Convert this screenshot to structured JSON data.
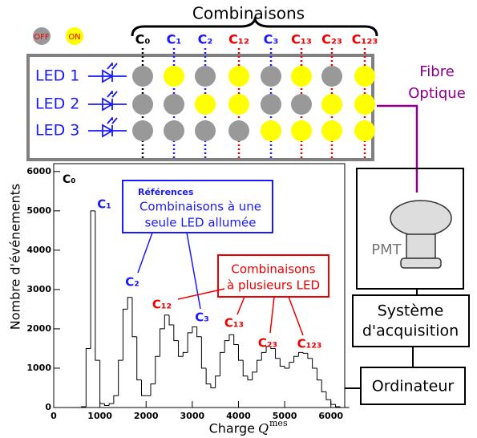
{
  "header": {
    "title": "Combinaisons",
    "off": "OFF",
    "on": "ON"
  },
  "combinations": [
    "C₀",
    "C₁",
    "C₂",
    "C₁₂",
    "C₃",
    "C₁₃",
    "C₂₃",
    "C₁₂₃"
  ],
  "leds": [
    "LED 1",
    "LED 2",
    "LED 3"
  ],
  "fibre": [
    "Fibre",
    "Optique"
  ],
  "pmt": "PMT",
  "acquisition": [
    "Système",
    "d'acquisition"
  ],
  "computer": "Ordinateur",
  "chart_data": {
    "type": "histogram",
    "y_label": "Nombre d'événements",
    "x_label": "Charge",
    "x_label_symbol": "Q",
    "x_label_sup": "mes",
    "panel_label": "C₀",
    "references_title": "Références",
    "references_lines": [
      "Combinaisons à une",
      "seule LED allumée"
    ],
    "multi_lines": [
      "Combinaisons",
      "à plusieurs LED"
    ],
    "color": "#000000",
    "bins": [
      500,
      600,
      700,
      800,
      900,
      1000,
      1100,
      1200,
      1300,
      1400,
      1500,
      1600,
      1700,
      1800,
      1900,
      2000,
      2100,
      2200,
      2300,
      2400,
      2500,
      2600,
      2700,
      2800,
      2900,
      3000,
      3100,
      3200,
      3300,
      3400,
      3500,
      3600,
      3700,
      3800,
      3900,
      4000,
      4100,
      4200,
      4300,
      4400,
      4500,
      4600,
      4700,
      4800,
      4900,
      5000,
      5100,
      5200,
      5300,
      5400,
      5500,
      5600,
      5700,
      5800,
      5900,
      6000,
      6100,
      6200,
      6300,
      6400
    ],
    "counts": [
      0,
      20,
      1500,
      5000,
      1200,
      100,
      50,
      100,
      300,
      1200,
      2500,
      2800,
      1800,
      700,
      300,
      300,
      600,
      1300,
      2000,
      2350,
      2100,
      1700,
      1300,
      1400,
      1900,
      2050,
      1800,
      1000,
      600,
      500,
      800,
      1400,
      1700,
      1850,
      1600,
      1200,
      800,
      700,
      900,
      1200,
      1400,
      1550,
      1500,
      1250,
      1050,
      1000,
      1150,
      1300,
      1400,
      1380,
      1250,
      1000,
      700,
      400,
      200,
      80,
      20,
      0,
      0
    ],
    "xlim": [
      0,
      6300
    ],
    "ylim": [
      0,
      6200
    ],
    "xticks": [
      0,
      1000,
      2000,
      3000,
      4000,
      5000,
      6000
    ],
    "yticks": [
      0,
      1000,
      2000,
      3000,
      4000,
      5000,
      6000
    ]
  }
}
